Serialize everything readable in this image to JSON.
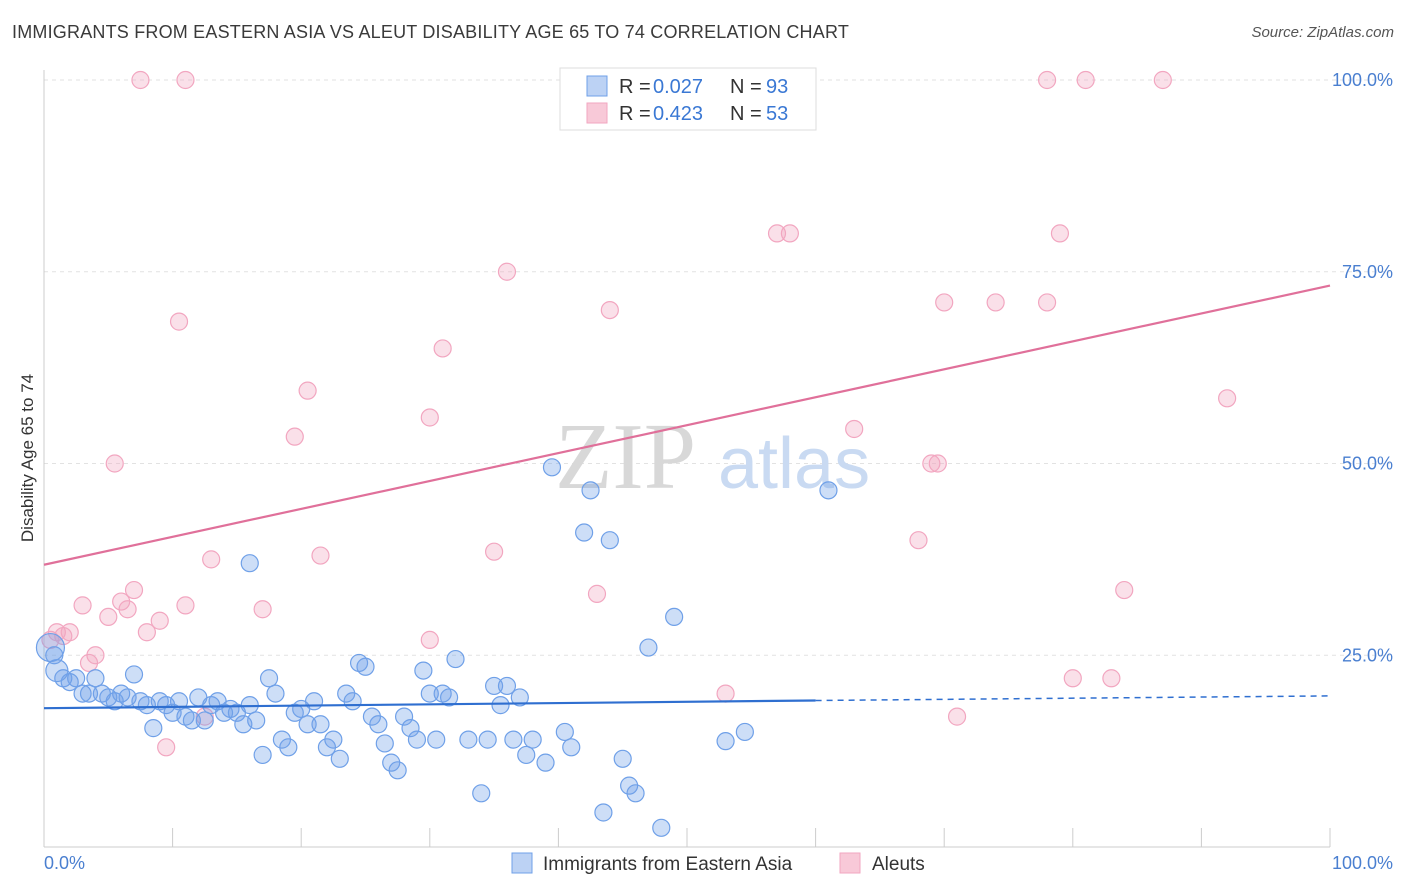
{
  "title": "IMMIGRANTS FROM EASTERN ASIA VS ALEUT DISABILITY AGE 65 TO 74 CORRELATION CHART",
  "source": "Source: ZipAtlas.com",
  "watermark": {
    "zip": "ZIP",
    "atlas": "atlas"
  },
  "legend": {
    "r_label": "R =",
    "n_label": "N =",
    "series1": {
      "r": "0.027",
      "n": "93"
    },
    "series2": {
      "r": "0.423",
      "n": "53"
    }
  },
  "chart_data": {
    "type": "scatter",
    "title": "IMMIGRANTS FROM EASTERN ASIA VS ALEUT DISABILITY AGE 65 TO 74 CORRELATION CHART",
    "xlabel": "",
    "ylabel": "Disability Age 65 to 74",
    "xlim": [
      0,
      100
    ],
    "ylim": [
      0,
      100
    ],
    "x_tick_labels": [
      "0.0%",
      "100.0%"
    ],
    "y_tick_labels": [
      "25.0%",
      "50.0%",
      "75.0%",
      "100.0%"
    ],
    "y_ticks": [
      25,
      50,
      75,
      100
    ],
    "grid": true,
    "legend_position": "top-center",
    "colors": {
      "series1": "#6fa0e8",
      "series2": "#f2a6c0",
      "line1": "#2f6fd0",
      "line2": "#e0709a"
    },
    "series": [
      {
        "name": "Immigrants from Eastern Asia",
        "trend": {
          "x": [
            0,
            60
          ],
          "y": [
            18.1,
            19.1
          ],
          "dashed_to": [
            100,
            19.7
          ]
        },
        "points": [
          [
            0.5,
            26
          ],
          [
            0.8,
            25
          ],
          [
            1,
            23
          ],
          [
            1.5,
            22
          ],
          [
            2,
            21.5
          ],
          [
            2.5,
            22
          ],
          [
            3,
            20
          ],
          [
            3.5,
            20
          ],
          [
            4,
            22
          ],
          [
            4.5,
            20
          ],
          [
            5,
            19.5
          ],
          [
            5.5,
            19
          ],
          [
            6,
            20
          ],
          [
            6.5,
            19.5
          ],
          [
            7,
            22.5
          ],
          [
            7.5,
            19
          ],
          [
            8,
            18.5
          ],
          [
            8.5,
            15.5
          ],
          [
            9,
            19
          ],
          [
            9.5,
            18.5
          ],
          [
            10,
            17.5
          ],
          [
            10.5,
            19
          ],
          [
            11,
            17
          ],
          [
            11.5,
            16.5
          ],
          [
            12,
            19.5
          ],
          [
            12.5,
            16.5
          ],
          [
            13,
            18.5
          ],
          [
            13.5,
            19
          ],
          [
            14,
            17.5
          ],
          [
            14.5,
            18
          ],
          [
            15,
            17.5
          ],
          [
            15.5,
            16
          ],
          [
            16,
            18.5
          ],
          [
            16.5,
            16.5
          ],
          [
            17,
            12
          ],
          [
            17.5,
            22
          ],
          [
            18,
            20
          ],
          [
            18.5,
            14
          ],
          [
            19,
            13
          ],
          [
            19.5,
            17.5
          ],
          [
            20,
            18
          ],
          [
            20.5,
            16
          ],
          [
            21,
            19
          ],
          [
            21.5,
            16
          ],
          [
            22,
            13
          ],
          [
            22.5,
            14
          ],
          [
            23,
            11.5
          ],
          [
            23.5,
            20
          ],
          [
            24,
            19
          ],
          [
            24.5,
            24
          ],
          [
            25,
            23.5
          ],
          [
            25.5,
            17
          ],
          [
            26,
            16
          ],
          [
            26.5,
            13.5
          ],
          [
            27,
            11
          ],
          [
            27.5,
            10
          ],
          [
            28,
            17
          ],
          [
            28.5,
            15.5
          ],
          [
            29,
            14
          ],
          [
            29.5,
            23
          ],
          [
            30,
            20
          ],
          [
            30.5,
            14
          ],
          [
            31,
            20
          ],
          [
            31.5,
            19.5
          ],
          [
            32,
            24.5
          ],
          [
            33,
            14
          ],
          [
            34,
            7
          ],
          [
            34.5,
            14
          ],
          [
            35,
            21
          ],
          [
            35.5,
            18.5
          ],
          [
            36,
            21
          ],
          [
            36.5,
            14
          ],
          [
            37,
            19.5
          ],
          [
            37.5,
            12
          ],
          [
            38,
            14
          ],
          [
            39,
            11
          ],
          [
            39.5,
            49.5
          ],
          [
            40.5,
            15
          ],
          [
            41,
            13
          ],
          [
            42,
            41
          ],
          [
            42.5,
            46.5
          ],
          [
            43.5,
            4.5
          ],
          [
            44,
            40
          ],
          [
            45,
            11.5
          ],
          [
            45.5,
            8
          ],
          [
            46,
            7
          ],
          [
            47,
            26
          ],
          [
            48,
            2.5
          ],
          [
            49,
            30
          ],
          [
            53,
            13.8
          ],
          [
            54.5,
            15
          ],
          [
            61,
            46.5
          ],
          [
            16,
            37
          ]
        ]
      },
      {
        "name": "Aleuts",
        "trend": {
          "x": [
            0,
            100
          ],
          "y": [
            36.8,
            73.2
          ]
        },
        "points": [
          [
            0.5,
            27
          ],
          [
            1,
            28
          ],
          [
            1.5,
            27.5
          ],
          [
            2,
            28
          ],
          [
            3,
            31.5
          ],
          [
            3.5,
            24
          ],
          [
            4,
            25
          ],
          [
            5,
            30
          ],
          [
            5.5,
            50
          ],
          [
            6,
            32
          ],
          [
            6.5,
            31
          ],
          [
            7,
            33.5
          ],
          [
            8,
            28
          ],
          [
            9,
            29.5
          ],
          [
            9.5,
            13
          ],
          [
            10.5,
            68.5
          ],
          [
            11,
            31.5
          ],
          [
            12.5,
            17
          ],
          [
            13,
            37.5
          ],
          [
            17,
            31
          ],
          [
            19.5,
            53.5
          ],
          [
            20.5,
            59.5
          ],
          [
            21.5,
            38
          ],
          [
            30,
            56
          ],
          [
            31,
            65
          ],
          [
            35,
            38.5
          ],
          [
            36,
            75
          ],
          [
            43,
            33
          ],
          [
            44,
            70
          ],
          [
            53,
            20
          ],
          [
            57,
            80
          ],
          [
            58,
            80
          ],
          [
            63,
            54.5
          ],
          [
            68,
            40
          ],
          [
            69,
            50
          ],
          [
            69.5,
            50
          ],
          [
            70,
            71
          ],
          [
            71,
            17
          ],
          [
            74,
            71
          ],
          [
            78,
            71
          ],
          [
            79,
            80
          ],
          [
            80,
            22
          ],
          [
            83,
            22
          ],
          [
            84,
            33.5
          ],
          [
            92,
            58.5
          ],
          [
            7.5,
            100
          ],
          [
            11,
            100
          ],
          [
            55,
            100
          ],
          [
            59,
            100
          ],
          [
            78,
            100
          ],
          [
            81,
            100
          ],
          [
            87,
            100
          ],
          [
            30,
            27
          ]
        ]
      }
    ]
  }
}
